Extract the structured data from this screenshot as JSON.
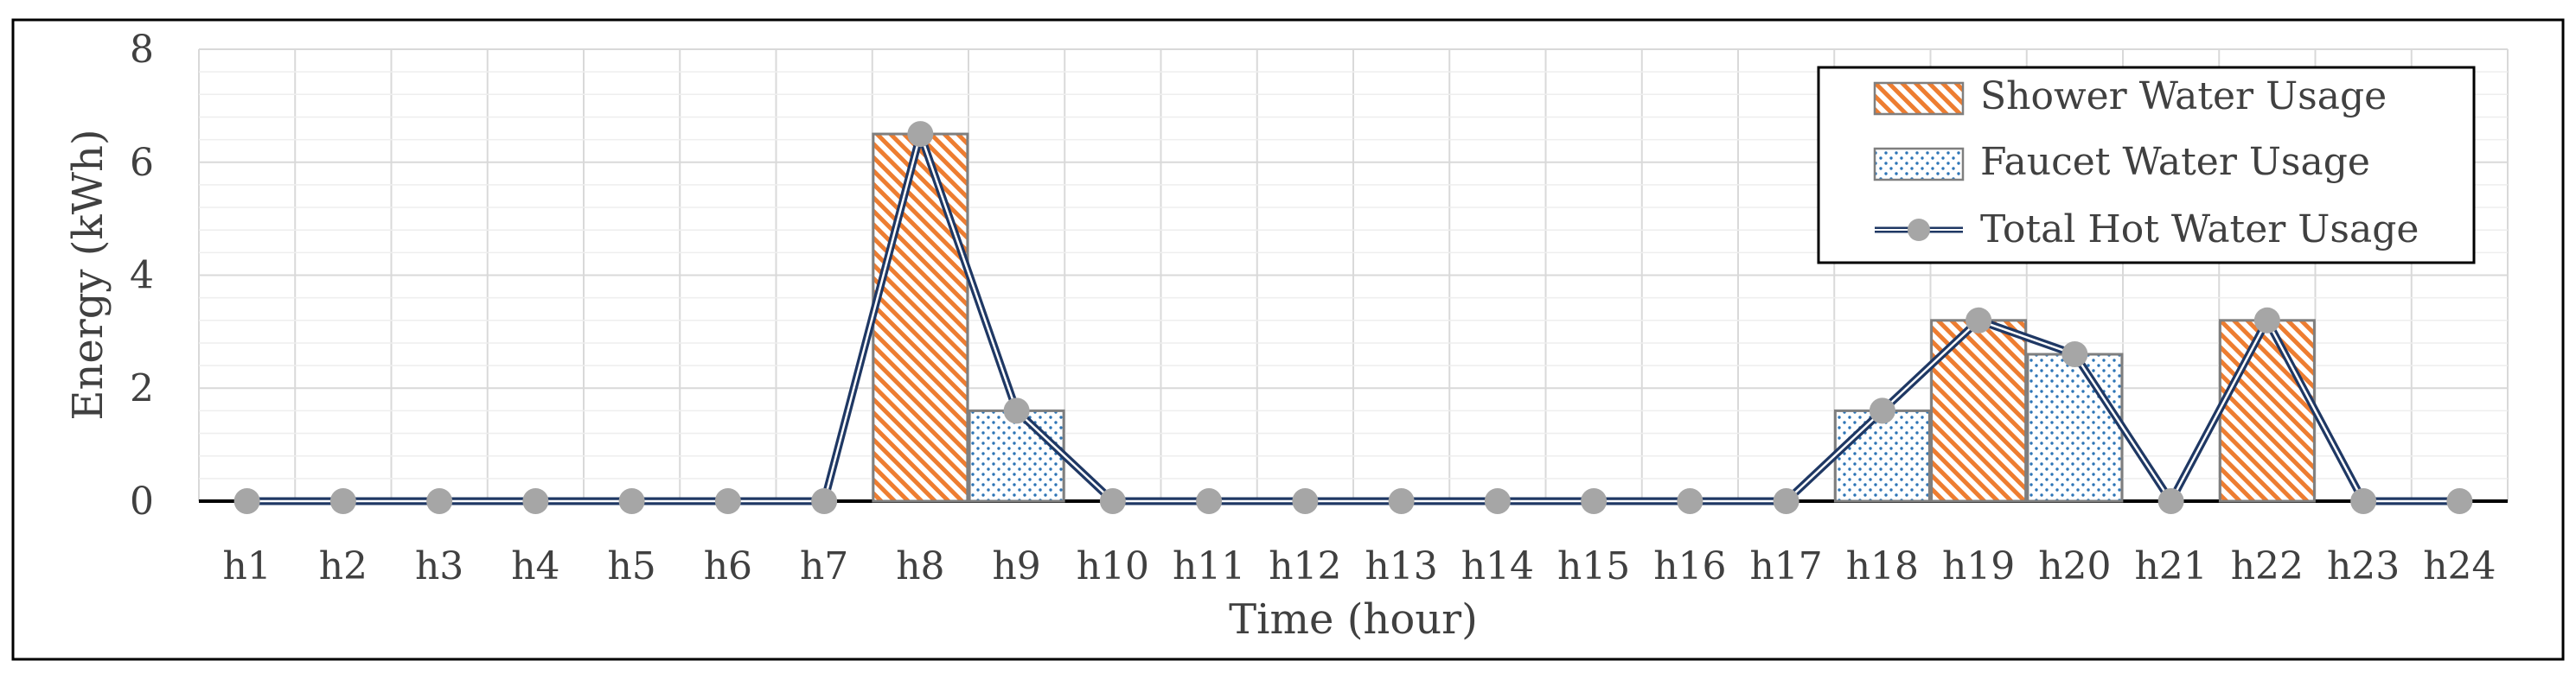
{
  "chart_data": {
    "type": "bar",
    "title": "",
    "xlabel": "Time (hour)",
    "ylabel": "Energy (kWh)",
    "ylim": [
      0,
      8
    ],
    "yticks": [
      0,
      2,
      4,
      6,
      8
    ],
    "grid": true,
    "legend_position": "top-right",
    "categories": [
      "h1",
      "h2",
      "h3",
      "h4",
      "h5",
      "h6",
      "h7",
      "h8",
      "h9",
      "h10",
      "h11",
      "h12",
      "h13",
      "h14",
      "h15",
      "h16",
      "h17",
      "h18",
      "h19",
      "h20",
      "h21",
      "h22",
      "h23",
      "h24"
    ],
    "series": [
      {
        "name": "Shower Water Usage",
        "type": "bar",
        "pattern": "diagonal-hatch",
        "color": "#ED7D31",
        "values": [
          0,
          0,
          0,
          0,
          0,
          0,
          0,
          6.5,
          0,
          0,
          0,
          0,
          0,
          0,
          0,
          0,
          0,
          0,
          3.2,
          0,
          0,
          3.2,
          0,
          0
        ]
      },
      {
        "name": "Faucet Water Usage",
        "type": "bar",
        "pattern": "dots",
        "color": "#2E75B6",
        "values": [
          0,
          0,
          0,
          0,
          0,
          0,
          0,
          0,
          1.6,
          0,
          0,
          0,
          0,
          0,
          0,
          0,
          0,
          1.6,
          0,
          2.6,
          0,
          0,
          0,
          0
        ]
      },
      {
        "name": "Total Hot Water Usage",
        "type": "line",
        "color": "#1F3864",
        "marker_color": "#A6A6A6",
        "values": [
          0,
          0,
          0,
          0,
          0,
          0,
          0,
          6.5,
          1.6,
          0,
          0,
          0,
          0,
          0,
          0,
          0,
          0,
          1.6,
          3.2,
          2.6,
          0,
          3.2,
          0,
          0
        ]
      }
    ]
  }
}
